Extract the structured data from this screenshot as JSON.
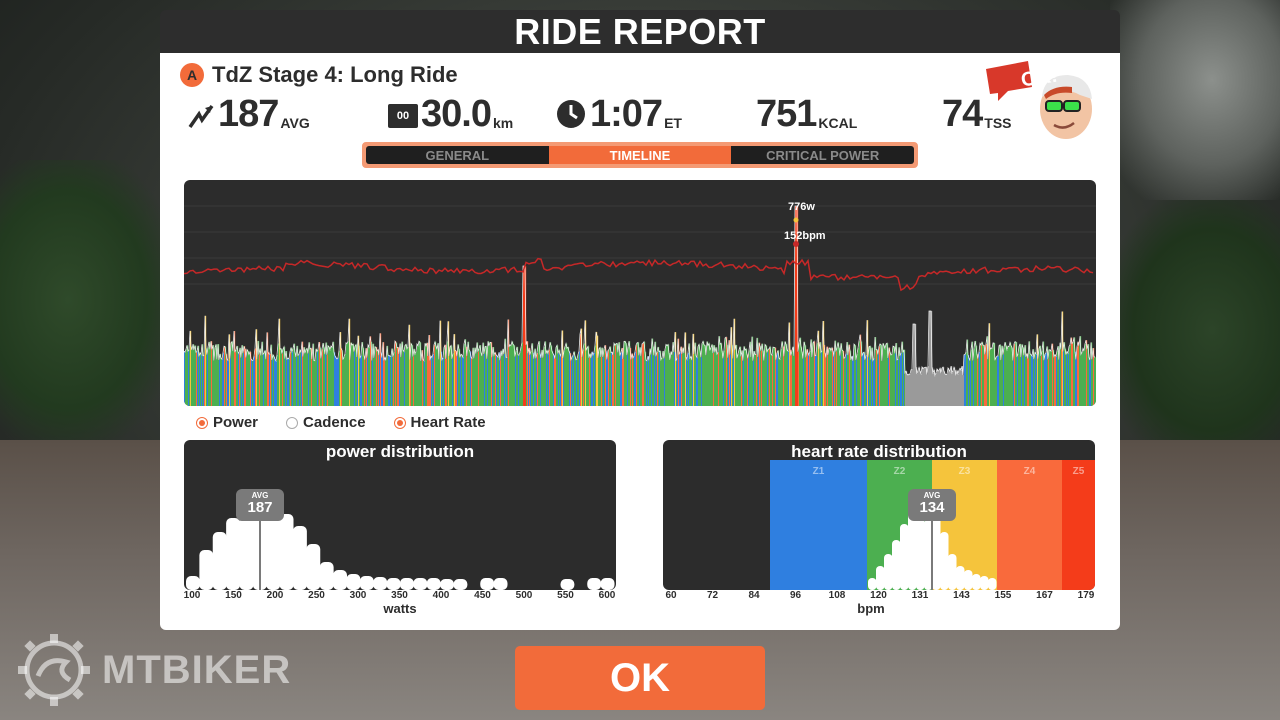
{
  "header": {
    "title": "RIDE REPORT"
  },
  "ride": {
    "category": "A",
    "name": "TdZ Stage 4: Long Ride"
  },
  "stats": {
    "power": {
      "value": "187",
      "unit": "AVG",
      "icon": "power-icon"
    },
    "distance": {
      "value": "30.0",
      "unit": "km",
      "icon": "odometer-icon",
      "icon_text": "00"
    },
    "time": {
      "value": "1:07",
      "unit": "ET",
      "icon": "clock-icon"
    },
    "calories": {
      "value": "751",
      "unit": "KCAL"
    },
    "tss": {
      "value": "74",
      "unit": "TSS"
    }
  },
  "avatar": {
    "speech": "OK!"
  },
  "tabs": [
    {
      "label": "GENERAL",
      "active": false
    },
    {
      "label": "TIMELINE",
      "active": true
    },
    {
      "label": "CRITICAL POWER",
      "active": false
    }
  ],
  "timeline": {
    "peak_power_label": "776w",
    "peak_hr_label": "152bpm"
  },
  "legend": [
    {
      "label": "Power",
      "on": true
    },
    {
      "label": "Cadence",
      "on": false
    },
    {
      "label": "Heart Rate",
      "on": true
    }
  ],
  "power_distribution": {
    "title": "power distribution",
    "avg_label": "AVG",
    "avg_value": "187",
    "ticks": [
      "100",
      "150",
      "200",
      "250",
      "300",
      "350",
      "400",
      "450",
      "500",
      "550",
      "600"
    ],
    "xlabel": "watts"
  },
  "hr_distribution": {
    "title": "heart rate distribution",
    "avg_label": "AVG",
    "avg_value": "134",
    "zones": [
      "Z1",
      "Z2",
      "Z3",
      "Z4",
      "Z5"
    ],
    "ticks": [
      "60",
      "72",
      "84",
      "96",
      "108",
      "120",
      "131",
      "143",
      "155",
      "167",
      "179"
    ],
    "xlabel": "bpm"
  },
  "ok_button": "OK",
  "brand": {
    "name": "MTBIKER"
  },
  "colors": {
    "accent": "#f26b3a",
    "panel": "#2c2c2c",
    "zone_blue": "#2f7fe0",
    "zone_green": "#4caf50",
    "zone_yellow": "#f5c43c",
    "zone_orange": "#f96a3c",
    "zone_red": "#f43c1a",
    "hr_line": "#c62828"
  }
}
